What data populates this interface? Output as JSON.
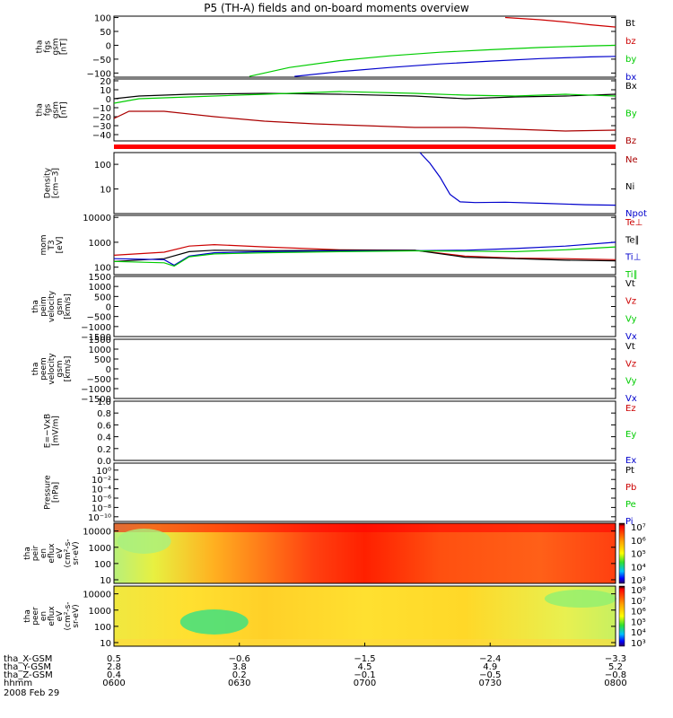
{
  "title": "P5 (TH-A) fields and on-board moments overview",
  "colors": {
    "black": "#000000",
    "red": "#cc0000",
    "darkred": "#aa0000",
    "green": "#00cc00",
    "blue": "#0000cc",
    "redbar": "#ff0000"
  },
  "chart_data": [
    {
      "id": "fgs",
      "type": "line",
      "ylabel": [
        "tha",
        "fgs",
        "gsm",
        "[nT]"
      ],
      "yticks": [
        "100",
        "50",
        "0",
        "−50",
        "−100"
      ],
      "tick_values": [
        100,
        50,
        0,
        -50,
        -100
      ],
      "ylim": [
        -115,
        105
      ],
      "legend": [
        {
          "text": "Bt",
          "color": "#000000"
        },
        {
          "text": "bz",
          "color": "#cc0000"
        },
        {
          "text": "by",
          "color": "#00cc00"
        },
        {
          "text": "bx",
          "color": "#0000cc"
        }
      ],
      "series": [
        {
          "name": "bz",
          "color": "#cc0000",
          "x": [
            0.0,
            0.78,
            0.85,
            0.9,
            0.95,
            1.0
          ],
          "y": [
            null,
            100,
            92,
            84,
            74,
            66
          ]
        },
        {
          "name": "by",
          "color": "#00cc00",
          "x": [
            0.27,
            0.35,
            0.45,
            0.55,
            0.65,
            0.75,
            0.85,
            0.95,
            1.0
          ],
          "y": [
            -112,
            -80,
            -55,
            -38,
            -25,
            -16,
            -8,
            -2,
            0
          ]
        },
        {
          "name": "bx",
          "color": "#0000cc",
          "x": [
            0.36,
            0.45,
            0.55,
            0.65,
            0.75,
            0.85,
            0.95,
            1.0
          ],
          "y": [
            -112,
            -95,
            -80,
            -67,
            -57,
            -48,
            -42,
            -40
          ]
        }
      ]
    },
    {
      "id": "fgs2",
      "type": "line",
      "ylabel": [
        "tha",
        "fgs",
        "gsm",
        "[nT]"
      ],
      "yticks": [
        "20",
        "10",
        "0",
        "−10",
        "−20",
        "−30",
        "−40"
      ],
      "tick_values": [
        20,
        10,
        0,
        -10,
        -20,
        -30,
        -40
      ],
      "ylim": [
        -47,
        22
      ],
      "legend": [
        {
          "text": "Bx",
          "color": "#000000"
        },
        {
          "text": "By",
          "color": "#00cc00"
        },
        {
          "text": "Bz",
          "color": "#aa0000"
        }
      ],
      "series": [
        {
          "name": "Bx",
          "color": "#000000",
          "x": [
            0.0,
            0.05,
            0.15,
            0.3,
            0.45,
            0.6,
            0.7,
            0.8,
            0.9,
            1.0
          ],
          "y": [
            0,
            3,
            5,
            6,
            5,
            3,
            0,
            2,
            3,
            5
          ]
        },
        {
          "name": "By",
          "color": "#00cc00",
          "x": [
            0.0,
            0.05,
            0.15,
            0.3,
            0.45,
            0.6,
            0.7,
            0.8,
            0.9,
            1.0
          ],
          "y": [
            -5,
            0,
            2,
            5,
            8,
            6,
            4,
            3,
            5,
            3
          ]
        },
        {
          "name": "Bz",
          "color": "#aa0000",
          "x": [
            0.0,
            0.03,
            0.1,
            0.2,
            0.3,
            0.4,
            0.5,
            0.6,
            0.7,
            0.8,
            0.9,
            1.0
          ],
          "y": [
            -22,
            -14,
            -14,
            -20,
            -25,
            -28,
            -30,
            -32,
            -32,
            -34,
            -36,
            -35
          ]
        }
      ]
    },
    {
      "id": "density",
      "type": "line",
      "ylabel": [
        "Density",
        "[cm−3]"
      ],
      "yticks": [
        "100",
        "10"
      ],
      "tick_values": [
        100,
        10
      ],
      "ylim_log": [
        1,
        300
      ],
      "legend": [
        {
          "text": "Ne",
          "color": "#aa0000"
        },
        {
          "text": "Ni",
          "color": "#000000"
        },
        {
          "text": "Npot",
          "color": "#0000cc"
        }
      ],
      "series": [
        {
          "name": "Npot",
          "color": "#0000cc",
          "x": [
            0.61,
            0.63,
            0.65,
            0.67,
            0.69,
            0.72,
            0.78,
            0.86,
            0.94,
            1.0
          ],
          "y": [
            300,
            110,
            30,
            6,
            3,
            2.8,
            2.9,
            2.6,
            2.3,
            2.2
          ]
        }
      ]
    },
    {
      "id": "temp",
      "type": "line",
      "ylabel": [
        "mom",
        "T3",
        "[eV]"
      ],
      "yticks": [
        "10000",
        "1000",
        "100"
      ],
      "tick_values": [
        10000,
        1000,
        100
      ],
      "ylim_log": [
        50,
        12000
      ],
      "legend": [
        {
          "text": "Te⊥",
          "color": "#cc0000"
        },
        {
          "text": "Te∥",
          "color": "#000000"
        },
        {
          "text": "Ti⊥",
          "color": "#0000cc"
        },
        {
          "text": "Ti∥",
          "color": "#00cc00"
        }
      ],
      "series": [
        {
          "name": "Te⊥",
          "color": "#cc0000",
          "x": [
            0.0,
            0.1,
            0.15,
            0.2,
            0.3,
            0.45,
            0.6,
            0.7,
            0.8,
            0.9,
            1.0
          ],
          "y": [
            300,
            400,
            700,
            800,
            650,
            500,
            480,
            280,
            230,
            220,
            200
          ]
        },
        {
          "name": "Te∥",
          "color": "#000000",
          "x": [
            0.0,
            0.1,
            0.15,
            0.2,
            0.3,
            0.45,
            0.6,
            0.7,
            0.8,
            0.9,
            1.0
          ],
          "y": [
            170,
            220,
            420,
            480,
            460,
            480,
            480,
            250,
            220,
            190,
            180
          ]
        },
        {
          "name": "Ti⊥",
          "color": "#0000cc",
          "x": [
            0.0,
            0.1,
            0.12,
            0.15,
            0.2,
            0.3,
            0.45,
            0.6,
            0.7,
            0.8,
            0.9,
            1.0
          ],
          "y": [
            220,
            200,
            120,
            280,
            380,
            420,
            450,
            460,
            480,
            560,
            700,
            1000
          ]
        },
        {
          "name": "Ti∥",
          "color": "#00cc00",
          "x": [
            0.0,
            0.1,
            0.12,
            0.15,
            0.2,
            0.3,
            0.45,
            0.6,
            0.7,
            0.8,
            0.9,
            1.0
          ],
          "y": [
            170,
            150,
            110,
            260,
            340,
            380,
            420,
            450,
            440,
            420,
            500,
            650
          ]
        }
      ]
    },
    {
      "id": "peim",
      "type": "line",
      "ylabel": [
        "tha",
        "peim",
        "velocity",
        "gsm",
        "[km/s]"
      ],
      "yticks": [
        "1500",
        "1000",
        "500",
        "0",
        "−500",
        "−1000",
        "−1500"
      ],
      "tick_values": [
        1500,
        1000,
        500,
        0,
        -500,
        -1000,
        -1500
      ],
      "ylim": [
        -1500,
        1500
      ],
      "legend": [
        {
          "text": "Vt",
          "color": "#000000"
        },
        {
          "text": "Vz",
          "color": "#cc0000"
        },
        {
          "text": "Vy",
          "color": "#00cc00"
        },
        {
          "text": "Vx",
          "color": "#0000cc"
        }
      ],
      "series": []
    },
    {
      "id": "peem",
      "type": "line",
      "ylabel": [
        "tha",
        "peem",
        "velocity",
        "gsm",
        "[km/s]"
      ],
      "yticks": [
        "1500",
        "1000",
        "500",
        "0",
        "−500",
        "−1000",
        "−1500"
      ],
      "tick_values": [
        1500,
        1000,
        500,
        0,
        -500,
        -1000,
        -1500
      ],
      "ylim": [
        -1500,
        1500
      ],
      "legend": [
        {
          "text": "Vt",
          "color": "#000000"
        },
        {
          "text": "Vz",
          "color": "#cc0000"
        },
        {
          "text": "Vy",
          "color": "#00cc00"
        },
        {
          "text": "Vx",
          "color": "#0000cc"
        }
      ],
      "series": []
    },
    {
      "id": "efield",
      "type": "line",
      "ylabel": [
        "E=−VxB",
        "[mV/m]"
      ],
      "yticks": [
        "1.0",
        "0.8",
        "0.6",
        "0.4",
        "0.2",
        "0.0"
      ],
      "tick_values": [
        1.0,
        0.8,
        0.6,
        0.4,
        0.2,
        0.0
      ],
      "ylim": [
        0,
        1
      ],
      "legend": [
        {
          "text": "Ez",
          "color": "#cc0000"
        },
        {
          "text": "Ey",
          "color": "#00cc00"
        },
        {
          "text": "Ex",
          "color": "#0000cc"
        }
      ],
      "series": []
    },
    {
      "id": "pressure",
      "type": "line",
      "ylabel": [
        "Pressure",
        "[nPa]"
      ],
      "yticks": [
        "10⁰",
        "10⁻²",
        "10⁻⁴",
        "10⁻⁶",
        "10⁻⁸",
        "10⁻¹⁰"
      ],
      "tick_values": [
        0,
        -2,
        -4,
        -6,
        -8,
        -10
      ],
      "ylim": [
        -11,
        1.5
      ],
      "legend": [
        {
          "text": "Pt",
          "color": "#000000"
        },
        {
          "text": "Pb",
          "color": "#cc0000"
        },
        {
          "text": "Pe",
          "color": "#00cc00"
        },
        {
          "text": "Pi",
          "color": "#0000cc"
        }
      ],
      "series": []
    },
    {
      "id": "peir",
      "type": "heatmap",
      "ylabel": [
        "tha",
        "peir",
        "en",
        "eflux",
        "eV",
        "(cm²-s-",
        "sr-eV)"
      ],
      "yticks": [
        "10000",
        "1000",
        "100",
        "10"
      ],
      "tick_values": [
        10000,
        1000,
        100,
        10
      ],
      "ylim_log": [
        6,
        30000
      ],
      "colorbar_ticks": [
        "10⁷",
        "10⁶",
        "10⁵",
        "10⁴",
        "10³"
      ]
    },
    {
      "id": "peer",
      "type": "heatmap",
      "ylabel": [
        "tha",
        "peer",
        "en",
        "eflux",
        "eV",
        "(cm²-s-",
        "sr-eV)"
      ],
      "yticks": [
        "10000",
        "1000",
        "100",
        "10"
      ],
      "tick_values": [
        10000,
        1000,
        100,
        10
      ],
      "ylim_log": [
        6,
        30000
      ],
      "colorbar_ticks": [
        "10⁸",
        "10⁷",
        "10⁶",
        "10⁵",
        "10⁴",
        "10³"
      ]
    }
  ],
  "xaxis": {
    "rows": [
      {
        "label": "tha_X-GSM",
        "values": [
          "0.5",
          "−0.6",
          "−1.5",
          "−2.4",
          "−3.3"
        ]
      },
      {
        "label": "tha_Y-GSM",
        "values": [
          "2.8",
          "3.8",
          "4.5",
          "4.9",
          "5.2"
        ]
      },
      {
        "label": "tha_Z-GSM",
        "values": [
          "0.4",
          "0.2",
          "−0.1",
          "−0.5",
          "−0.8"
        ]
      },
      {
        "label": "hhmm",
        "values": [
          "0600",
          "0630",
          "0700",
          "0730",
          "0800"
        ]
      }
    ],
    "date": "2008 Feb 29"
  }
}
